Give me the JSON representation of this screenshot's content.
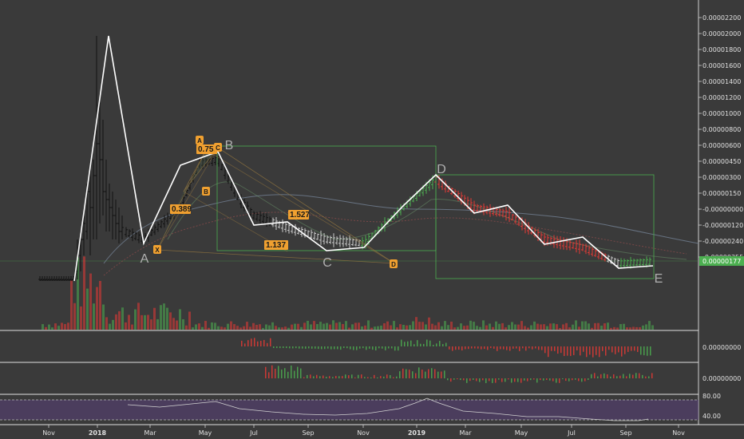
{
  "chart_data": {
    "type": "candlestick",
    "price_axis": {
      "labels": [
        "0.00002200",
        "0.00002000",
        "0.00001800",
        "0.00001600",
        "0.00001400",
        "0.00001200",
        "0.00001000",
        "0.00000800",
        "0.00000600",
        "0.00000450",
        "0.00000300",
        "0.00000150",
        "-0.00000000",
        "-0.00000120",
        "-0.00000240",
        "-0.00000355"
      ],
      "current_price_label": "0.00000177",
      "accent": "#4caf50"
    },
    "pane_axes": {
      "macd_label": "0.00000000",
      "ao_label": "0.00000000",
      "rsi_labels": [
        "80.00",
        "40.00"
      ]
    },
    "time_axis": [
      "Nov",
      "2018",
      "Mar",
      "May",
      "Jul",
      "Sep",
      "Nov",
      "2019",
      "Mar",
      "May",
      "Jul",
      "Sep",
      "Nov"
    ],
    "wave_points": [
      "A",
      "B",
      "C",
      "D",
      "E"
    ],
    "fib_labels": [
      "0.753",
      "0.389",
      "1.527",
      "1.137"
    ],
    "fib_tags": [
      "A",
      "B",
      "C",
      "D",
      "X"
    ],
    "colors": {
      "up": "#4caf50",
      "down": "#e53935",
      "wave": "#ffffff",
      "box": "#4caf50",
      "fib": "#f0a030",
      "rsi_band": "#5a3f7a"
    }
  }
}
